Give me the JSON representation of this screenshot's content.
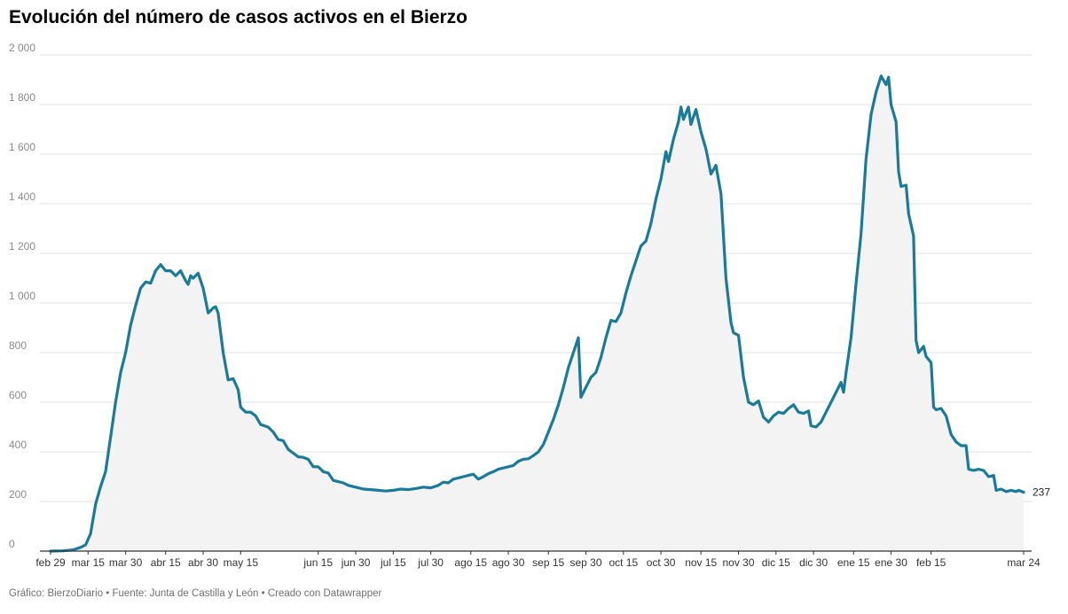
{
  "title": "Evolución del número de casos activos en el Bierzo",
  "footer": "Gráfico: BierzoDiario • Fuente: Junta de Castilla y León • Creado con Datawrapper",
  "colors": {
    "line": "#1a7a9a",
    "area": "#f3f3f3",
    "grid": "#e2e2e2",
    "axis": "#333333"
  },
  "chart_data": {
    "type": "area",
    "title": "Evolución del número de casos activos en el Bierzo",
    "ylim": [
      0,
      2000
    ],
    "y_ticks": [
      0,
      200,
      400,
      600,
      800,
      1000,
      1200,
      1400,
      1600,
      1800,
      2000
    ],
    "y_tick_labels": [
      "0",
      "200",
      "400",
      "600",
      "800",
      "1 000",
      "1 200",
      "1 400",
      "1 600",
      "1 800",
      "2 000"
    ],
    "x_ticks": [
      {
        "date": "2020-02-29",
        "label": "feb 29"
      },
      {
        "date": "2020-03-15",
        "label": "mar 15"
      },
      {
        "date": "2020-03-30",
        "label": "mar 30"
      },
      {
        "date": "2020-04-15",
        "label": "abr 15"
      },
      {
        "date": "2020-04-30",
        "label": "abr 30"
      },
      {
        "date": "2020-05-15",
        "label": "may 15"
      },
      {
        "date": "2020-06-15",
        "label": "jun 15"
      },
      {
        "date": "2020-06-30",
        "label": "jun 30"
      },
      {
        "date": "2020-07-15",
        "label": "jul 15"
      },
      {
        "date": "2020-07-30",
        "label": "jul 30"
      },
      {
        "date": "2020-08-15",
        "label": "ago 15"
      },
      {
        "date": "2020-08-30",
        "label": "ago 30"
      },
      {
        "date": "2020-09-15",
        "label": "sep 15"
      },
      {
        "date": "2020-09-30",
        "label": "sep 30"
      },
      {
        "date": "2020-10-15",
        "label": "oct 15"
      },
      {
        "date": "2020-10-30",
        "label": "oct 30"
      },
      {
        "date": "2020-11-15",
        "label": "nov 15"
      },
      {
        "date": "2020-11-30",
        "label": "nov 30"
      },
      {
        "date": "2020-12-15",
        "label": "dic 15"
      },
      {
        "date": "2020-12-30",
        "label": "dic 30"
      },
      {
        "date": "2021-01-15",
        "label": "ene 15"
      },
      {
        "date": "2021-01-30",
        "label": "ene 30"
      },
      {
        "date": "2021-02-15",
        "label": "feb 15"
      },
      {
        "date": "2021-03-24",
        "label": "mar 24"
      }
    ],
    "end_label": "237",
    "series": [
      {
        "values": [
          [
            "2020-02-29",
            0
          ],
          [
            "2020-03-05",
            1
          ],
          [
            "2020-03-09",
            5
          ],
          [
            "2020-03-12",
            15
          ],
          [
            "2020-03-14",
            25
          ],
          [
            "2020-03-16",
            70
          ],
          [
            "2020-03-18",
            190
          ],
          [
            "2020-03-20",
            260
          ],
          [
            "2020-03-22",
            320
          ],
          [
            "2020-03-24",
            460
          ],
          [
            "2020-03-26",
            600
          ],
          [
            "2020-03-28",
            720
          ],
          [
            "2020-03-30",
            800
          ],
          [
            "2020-04-01",
            910
          ],
          [
            "2020-04-03",
            990
          ],
          [
            "2020-04-05",
            1060
          ],
          [
            "2020-04-07",
            1085
          ],
          [
            "2020-04-09",
            1080
          ],
          [
            "2020-04-11",
            1130
          ],
          [
            "2020-04-13",
            1155
          ],
          [
            "2020-04-15",
            1130
          ],
          [
            "2020-04-17",
            1130
          ],
          [
            "2020-04-19",
            1110
          ],
          [
            "2020-04-21",
            1130
          ],
          [
            "2020-04-23",
            1090
          ],
          [
            "2020-04-24",
            1075
          ],
          [
            "2020-04-25",
            1110
          ],
          [
            "2020-04-26",
            1100
          ],
          [
            "2020-04-28",
            1120
          ],
          [
            "2020-04-30",
            1060
          ],
          [
            "2020-05-02",
            960
          ],
          [
            "2020-05-04",
            980
          ],
          [
            "2020-05-05",
            985
          ],
          [
            "2020-05-06",
            960
          ],
          [
            "2020-05-08",
            800
          ],
          [
            "2020-05-10",
            690
          ],
          [
            "2020-05-12",
            695
          ],
          [
            "2020-05-14",
            650
          ],
          [
            "2020-05-15",
            580
          ],
          [
            "2020-05-17",
            560
          ],
          [
            "2020-05-19",
            560
          ],
          [
            "2020-05-21",
            545
          ],
          [
            "2020-05-23",
            510
          ],
          [
            "2020-05-26",
            500
          ],
          [
            "2020-05-28",
            480
          ],
          [
            "2020-05-30",
            450
          ],
          [
            "2020-06-01",
            445
          ],
          [
            "2020-06-03",
            410
          ],
          [
            "2020-06-05",
            395
          ],
          [
            "2020-06-07",
            380
          ],
          [
            "2020-06-09",
            378
          ],
          [
            "2020-06-11",
            370
          ],
          [
            "2020-06-13",
            340
          ],
          [
            "2020-06-15",
            340
          ],
          [
            "2020-06-17",
            320
          ],
          [
            "2020-06-19",
            315
          ],
          [
            "2020-06-21",
            285
          ],
          [
            "2020-06-23",
            280
          ],
          [
            "2020-06-25",
            275
          ],
          [
            "2020-06-27",
            265
          ],
          [
            "2020-06-29",
            260
          ],
          [
            "2020-07-01",
            255
          ],
          [
            "2020-07-03",
            250
          ],
          [
            "2020-07-06",
            248
          ],
          [
            "2020-07-09",
            245
          ],
          [
            "2020-07-12",
            242
          ],
          [
            "2020-07-15",
            245
          ],
          [
            "2020-07-18",
            250
          ],
          [
            "2020-07-21",
            248
          ],
          [
            "2020-07-24",
            252
          ],
          [
            "2020-07-27",
            258
          ],
          [
            "2020-07-30",
            255
          ],
          [
            "2020-08-02",
            265
          ],
          [
            "2020-08-04",
            278
          ],
          [
            "2020-08-06",
            275
          ],
          [
            "2020-08-08",
            290
          ],
          [
            "2020-08-10",
            295
          ],
          [
            "2020-08-12",
            300
          ],
          [
            "2020-08-14",
            305
          ],
          [
            "2020-08-16",
            310
          ],
          [
            "2020-08-18",
            290
          ],
          [
            "2020-08-20",
            300
          ],
          [
            "2020-08-22",
            312
          ],
          [
            "2020-08-24",
            320
          ],
          [
            "2020-08-26",
            330
          ],
          [
            "2020-08-28",
            335
          ],
          [
            "2020-08-30",
            340
          ],
          [
            "2020-09-01",
            345
          ],
          [
            "2020-09-03",
            362
          ],
          [
            "2020-09-05",
            370
          ],
          [
            "2020-09-07",
            372
          ],
          [
            "2020-09-09",
            385
          ],
          [
            "2020-09-11",
            400
          ],
          [
            "2020-09-13",
            430
          ],
          [
            "2020-09-15",
            480
          ],
          [
            "2020-09-17",
            530
          ],
          [
            "2020-09-19",
            590
          ],
          [
            "2020-09-21",
            660
          ],
          [
            "2020-09-23",
            740
          ],
          [
            "2020-09-25",
            800
          ],
          [
            "2020-09-27",
            860
          ],
          [
            "2020-09-28",
            620
          ],
          [
            "2020-09-30",
            660
          ],
          [
            "2020-10-02",
            700
          ],
          [
            "2020-10-04",
            720
          ],
          [
            "2020-10-06",
            780
          ],
          [
            "2020-10-08",
            860
          ],
          [
            "2020-10-10",
            930
          ],
          [
            "2020-10-12",
            925
          ],
          [
            "2020-10-14",
            960
          ],
          [
            "2020-10-16",
            1040
          ],
          [
            "2020-10-18",
            1110
          ],
          [
            "2020-10-20",
            1170
          ],
          [
            "2020-10-22",
            1230
          ],
          [
            "2020-10-24",
            1250
          ],
          [
            "2020-10-26",
            1320
          ],
          [
            "2020-10-28",
            1420
          ],
          [
            "2020-10-30",
            1500
          ],
          [
            "2020-11-01",
            1610
          ],
          [
            "2020-11-02",
            1570
          ],
          [
            "2020-11-04",
            1660
          ],
          [
            "2020-11-06",
            1730
          ],
          [
            "2020-11-07",
            1790
          ],
          [
            "2020-11-08",
            1740
          ],
          [
            "2020-11-10",
            1790
          ],
          [
            "2020-11-11",
            1720
          ],
          [
            "2020-11-13",
            1780
          ],
          [
            "2020-11-15",
            1690
          ],
          [
            "2020-11-17",
            1620
          ],
          [
            "2020-11-19",
            1520
          ],
          [
            "2020-11-21",
            1555
          ],
          [
            "2020-11-23",
            1440
          ],
          [
            "2020-11-25",
            1100
          ],
          [
            "2020-11-27",
            920
          ],
          [
            "2020-11-28",
            880
          ],
          [
            "2020-11-30",
            870
          ],
          [
            "2020-12-02",
            700
          ],
          [
            "2020-12-04",
            600
          ],
          [
            "2020-12-06",
            590
          ],
          [
            "2020-12-08",
            605
          ],
          [
            "2020-12-10",
            540
          ],
          [
            "2020-12-12",
            520
          ],
          [
            "2020-12-14",
            545
          ],
          [
            "2020-12-16",
            560
          ],
          [
            "2020-12-18",
            555
          ],
          [
            "2020-12-20",
            575
          ],
          [
            "2020-12-22",
            590
          ],
          [
            "2020-12-24",
            560
          ],
          [
            "2020-12-26",
            555
          ],
          [
            "2020-12-28",
            565
          ],
          [
            "2020-12-29",
            505
          ],
          [
            "2020-12-31",
            500
          ],
          [
            "2021-01-02",
            520
          ],
          [
            "2021-01-04",
            560
          ],
          [
            "2021-01-06",
            600
          ],
          [
            "2021-01-08",
            640
          ],
          [
            "2021-01-10",
            680
          ],
          [
            "2021-01-11",
            640
          ],
          [
            "2021-01-12",
            720
          ],
          [
            "2021-01-14",
            860
          ],
          [
            "2021-01-16",
            1080
          ],
          [
            "2021-01-18",
            1280
          ],
          [
            "2021-01-20",
            1580
          ],
          [
            "2021-01-22",
            1760
          ],
          [
            "2021-01-24",
            1850
          ],
          [
            "2021-01-26",
            1915
          ],
          [
            "2021-01-28",
            1880
          ],
          [
            "2021-01-29",
            1910
          ],
          [
            "2021-01-30",
            1800
          ],
          [
            "2021-02-01",
            1730
          ],
          [
            "2021-02-02",
            1530
          ],
          [
            "2021-02-03",
            1470
          ],
          [
            "2021-02-05",
            1475
          ],
          [
            "2021-02-06",
            1360
          ],
          [
            "2021-02-08",
            1270
          ],
          [
            "2021-02-09",
            850
          ],
          [
            "2021-02-10",
            800
          ],
          [
            "2021-02-12",
            825
          ],
          [
            "2021-02-13",
            785
          ],
          [
            "2021-02-15",
            760
          ],
          [
            "2021-02-16",
            580
          ],
          [
            "2021-02-17",
            570
          ],
          [
            "2021-02-19",
            575
          ],
          [
            "2021-02-21",
            545
          ],
          [
            "2021-02-23",
            470
          ],
          [
            "2021-02-25",
            440
          ],
          [
            "2021-02-27",
            425
          ],
          [
            "2021-03-01",
            425
          ],
          [
            "2021-03-02",
            330
          ],
          [
            "2021-03-04",
            325
          ],
          [
            "2021-03-06",
            330
          ],
          [
            "2021-03-08",
            325
          ],
          [
            "2021-03-10",
            300
          ],
          [
            "2021-03-12",
            305
          ],
          [
            "2021-03-13",
            245
          ],
          [
            "2021-03-15",
            250
          ],
          [
            "2021-03-17",
            240
          ],
          [
            "2021-03-19",
            245
          ],
          [
            "2021-03-21",
            240
          ],
          [
            "2021-03-22",
            245
          ],
          [
            "2021-03-24",
            237
          ]
        ]
      }
    ]
  }
}
